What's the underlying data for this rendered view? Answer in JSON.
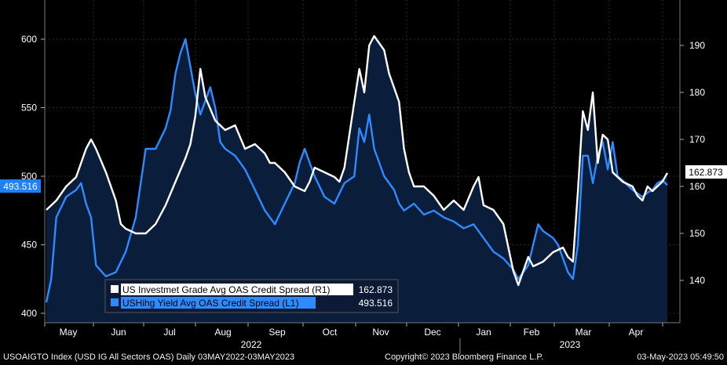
{
  "colors": {
    "background": "#000000",
    "area_fill": "#0a1e3c",
    "ig_line": "#ffffff",
    "hy_line": "#2e8bff",
    "hy_tag": "#1f7fff",
    "ig_tag": "#ffffff"
  },
  "footer": {
    "left": "USOAIGTO Index (USD IG All Sectors OAS)  Daily 03MAY2022-03MAY2023",
    "center": "Copyright© 2023 Bloomberg Finance L.P.",
    "right": "03-May-2023 05:49:50"
  },
  "chart_data": {
    "type": "line",
    "x_start_label": "03MAY2022",
    "x_end_label": "03MAY2023",
    "month_labels": [
      "May",
      "Jun",
      "Jul",
      "Aug",
      "Sep",
      "Oct",
      "Nov",
      "Dec",
      "Jan",
      "Feb",
      "Mar",
      "Apr"
    ],
    "year_labels": [
      "2022",
      "2023"
    ],
    "left_axis": {
      "ylim": [
        395,
        625
      ],
      "ticks": [
        400,
        450,
        500,
        550,
        600
      ]
    },
    "right_axis": {
      "ylim": [
        133,
        198
      ],
      "ticks": [
        140,
        150,
        160,
        170,
        180,
        190
      ]
    },
    "legend": [
      {
        "name": "US Investmet Grade Avg OAS Credit Spread (R1)",
        "value": "162.873"
      },
      {
        "name": "USHihg Yield Avg OAS Credit Spread (L1)",
        "value": "493.516"
      }
    ],
    "last_value_tags": {
      "left": "493.516",
      "right": "162.873"
    },
    "grid": true,
    "series": [
      {
        "name": "US Investmet Grade Avg OAS Credit Spread (R1)",
        "axis": "right",
        "points": [
          [
            0,
            155
          ],
          [
            2,
            157
          ],
          [
            4,
            160
          ],
          [
            6,
            162
          ],
          [
            8,
            168
          ],
          [
            9,
            170
          ],
          [
            10,
            168
          ],
          [
            12,
            163
          ],
          [
            14,
            157
          ],
          [
            15,
            152
          ],
          [
            16,
            151
          ],
          [
            18,
            150
          ],
          [
            20,
            150
          ],
          [
            22,
            152
          ],
          [
            24,
            156
          ],
          [
            26,
            161
          ],
          [
            28,
            166
          ],
          [
            29,
            169
          ],
          [
            30,
            175
          ],
          [
            31,
            185
          ],
          [
            32,
            179
          ],
          [
            34,
            174
          ],
          [
            36,
            172
          ],
          [
            38,
            173
          ],
          [
            40,
            168
          ],
          [
            42,
            169
          ],
          [
            44,
            167
          ],
          [
            45,
            165
          ],
          [
            46,
            165
          ],
          [
            48,
            163
          ],
          [
            50,
            160
          ],
          [
            52,
            159
          ],
          [
            53,
            161
          ],
          [
            54,
            164
          ],
          [
            56,
            163
          ],
          [
            58,
            162
          ],
          [
            59,
            161
          ],
          [
            60,
            164
          ],
          [
            62,
            178
          ],
          [
            63,
            185
          ],
          [
            64,
            180
          ],
          [
            65,
            190
          ],
          [
            66,
            192
          ],
          [
            68,
            189
          ],
          [
            69,
            184
          ],
          [
            70,
            181
          ],
          [
            71,
            178
          ],
          [
            72,
            168
          ],
          [
            73,
            163
          ],
          [
            74,
            160
          ],
          [
            76,
            160
          ],
          [
            78,
            158
          ],
          [
            80,
            155
          ],
          [
            82,
            157
          ],
          [
            84,
            155
          ],
          [
            86,
            160
          ],
          [
            87,
            162
          ],
          [
            88,
            156
          ],
          [
            90,
            155
          ],
          [
            92,
            152
          ],
          [
            93,
            147
          ],
          [
            94,
            142
          ],
          [
            95,
            139
          ],
          [
            96,
            142
          ],
          [
            97,
            145
          ],
          [
            98,
            143
          ],
          [
            100,
            144
          ],
          [
            102,
            146
          ],
          [
            104,
            147
          ],
          [
            105,
            145
          ],
          [
            106,
            144
          ],
          [
            107,
            159
          ],
          [
            108,
            176
          ],
          [
            109,
            172
          ],
          [
            110,
            180
          ],
          [
            111,
            165
          ],
          [
            112,
            171
          ],
          [
            113,
            170
          ],
          [
            114,
            163
          ],
          [
            116,
            161
          ],
          [
            118,
            160
          ],
          [
            119,
            158
          ],
          [
            120,
            157
          ],
          [
            121,
            160
          ],
          [
            122,
            159
          ],
          [
            123,
            160
          ],
          [
            124,
            161
          ],
          [
            125,
            162.873
          ]
        ]
      },
      {
        "name": "USHihg Yield Avg OAS Credit Spread (L1)",
        "axis": "left",
        "points": [
          [
            0,
            408
          ],
          [
            1,
            425
          ],
          [
            2,
            470
          ],
          [
            4,
            485
          ],
          [
            6,
            490
          ],
          [
            7,
            495
          ],
          [
            8,
            480
          ],
          [
            9,
            470
          ],
          [
            10,
            435
          ],
          [
            12,
            427
          ],
          [
            14,
            430
          ],
          [
            16,
            445
          ],
          [
            18,
            470
          ],
          [
            20,
            520
          ],
          [
            22,
            520
          ],
          [
            24,
            535
          ],
          [
            25,
            548
          ],
          [
            26,
            575
          ],
          [
            27,
            590
          ],
          [
            28,
            600
          ],
          [
            29,
            580
          ],
          [
            30,
            560
          ],
          [
            31,
            545
          ],
          [
            32,
            555
          ],
          [
            33,
            565
          ],
          [
            34,
            550
          ],
          [
            35,
            525
          ],
          [
            36,
            520
          ],
          [
            38,
            515
          ],
          [
            40,
            505
          ],
          [
            42,
            490
          ],
          [
            44,
            475
          ],
          [
            46,
            465
          ],
          [
            48,
            480
          ],
          [
            50,
            495
          ],
          [
            51,
            510
          ],
          [
            52,
            520
          ],
          [
            54,
            500
          ],
          [
            56,
            485
          ],
          [
            58,
            480
          ],
          [
            60,
            495
          ],
          [
            62,
            500
          ],
          [
            63,
            535
          ],
          [
            64,
            525
          ],
          [
            65,
            545
          ],
          [
            66,
            520
          ],
          [
            68,
            500
          ],
          [
            70,
            490
          ],
          [
            71,
            480
          ],
          [
            72,
            475
          ],
          [
            74,
            480
          ],
          [
            76,
            472
          ],
          [
            78,
            475
          ],
          [
            80,
            470
          ],
          [
            82,
            467
          ],
          [
            84,
            462
          ],
          [
            86,
            465
          ],
          [
            88,
            455
          ],
          [
            90,
            445
          ],
          [
            92,
            440
          ],
          [
            94,
            432
          ],
          [
            95,
            425
          ],
          [
            96,
            430
          ],
          [
            97,
            435
          ],
          [
            98,
            450
          ],
          [
            99,
            465
          ],
          [
            100,
            460
          ],
          [
            102,
            455
          ],
          [
            103,
            450
          ],
          [
            104,
            440
          ],
          [
            105,
            430
          ],
          [
            106,
            425
          ],
          [
            107,
            450
          ],
          [
            108,
            515
          ],
          [
            109,
            515
          ],
          [
            110,
            495
          ],
          [
            111,
            515
          ],
          [
            112,
            525
          ],
          [
            113,
            505
          ],
          [
            114,
            525
          ],
          [
            115,
            500
          ],
          [
            116,
            497
          ],
          [
            118,
            490
          ],
          [
            120,
            485
          ],
          [
            121,
            488
          ],
          [
            122,
            490
          ],
          [
            123,
            495
          ],
          [
            124,
            497
          ],
          [
            125,
            493.516
          ]
        ]
      }
    ]
  }
}
